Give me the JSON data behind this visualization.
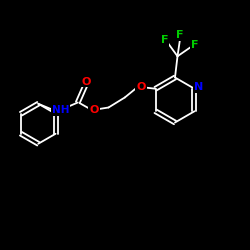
{
  "background_color": "#000000",
  "line_color": "#ffffff",
  "atom_colors": {
    "O": "#ff0000",
    "N": "#0000ff",
    "F": "#00cc00",
    "C": "#ffffff",
    "H": "#ffffff"
  },
  "figsize": [
    2.5,
    2.5
  ],
  "dpi": 100
}
